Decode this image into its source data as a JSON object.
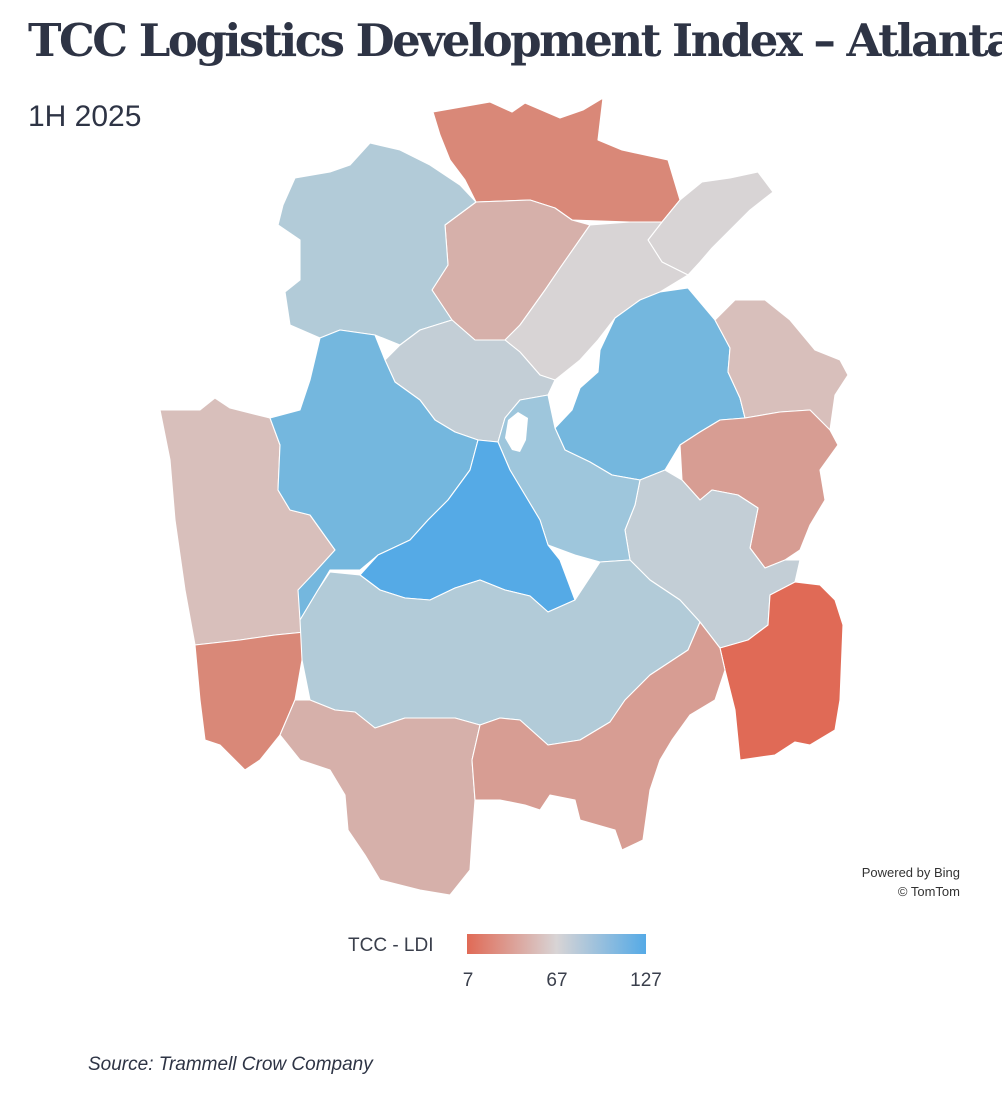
{
  "header": {
    "title": "TCC Logistics Development Index – Atlanta",
    "subtitle": "1H 2025"
  },
  "map": {
    "attribution_line1": "Powered by Bing",
    "attribution_line2": "© TomTom",
    "colors": {
      "deep_red": "#e06a56",
      "red": "#d98878",
      "mid_red": "#d79d93",
      "light_red": "#d6b0aa",
      "pale_red": "#d8bfbb",
      "neutral": "#d8d4d5",
      "pale_blue": "#c3ced6",
      "light_blue": "#b2cbd8",
      "mid_blue": "#9ec6dc",
      "blue": "#74b7de",
      "deep_blue": "#55aae6",
      "boundary": "#ffffff"
    }
  },
  "legend": {
    "label": "TCC - LDI",
    "min": "7",
    "mid": "67",
    "max": "127",
    "color_low": "#e06a56",
    "color_mid": "#d8d4d5",
    "color_high": "#55aae6"
  },
  "footer": {
    "source": "Source: Trammell Crow Company"
  }
}
